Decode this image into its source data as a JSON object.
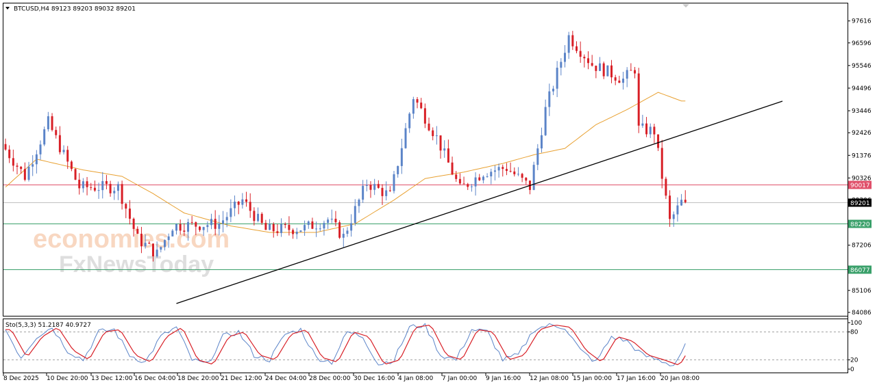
{
  "chart_data": {
    "type": "candlestick",
    "symbol_header": "BTCUSD,H4  89123 89203 89032 89201",
    "indicator_header": "Sto(5,3,3) 51.2187 40.9727",
    "price_axis": {
      "min": 84086,
      "max": 98080,
      "ticks": [
        "97616",
        "96596",
        "95546",
        "94496",
        "93446",
        "92426",
        "91376",
        "90326",
        "89306",
        "88256",
        "87206",
        "86156",
        "85106",
        "84086"
      ]
    },
    "stoch_axis": {
      "min": 0,
      "max": 100,
      "ticks": [
        "100",
        "80",
        "20",
        "0"
      ],
      "levels": [
        80,
        20
      ]
    },
    "time_labels": [
      "8 Dec 2025",
      "10 Dec 20:00",
      "13 Dec 12:00",
      "16 Dec 04:00",
      "18 Dec 20:00",
      "21 Dec 12:00",
      "24 Dec 04:00",
      "28 Dec 00:00",
      "30 Dec 16:00",
      "4 Jan 08:00",
      "7 Jan 00:00",
      "9 Jan 16:00",
      "12 Jan 08:00",
      "15 Jan 00:00",
      "17 Jan 16:00",
      "20 Jan 08:00"
    ],
    "horizontal_lines": [
      {
        "price": 90017,
        "label": "90017",
        "color": "#e0506a"
      },
      {
        "price": 89201,
        "label": "89201",
        "color": "#c0c0c0"
      },
      {
        "price": 88220,
        "label": "88220",
        "color": "#3aa06a"
      },
      {
        "price": 86077,
        "label": "86077",
        "color": "#3aa06a"
      }
    ],
    "trendline": {
      "from": {
        "bar": 44,
        "price": 84500
      },
      "to": {
        "bar": 200,
        "price": 93890
      }
    },
    "price_path": [
      [
        0,
        91900
      ],
      [
        6,
        90400
      ],
      [
        12,
        92900
      ],
      [
        20,
        89900
      ],
      [
        30,
        89900
      ],
      [
        35,
        87500
      ],
      [
        40,
        86800
      ],
      [
        44,
        88100
      ],
      [
        56,
        88200
      ],
      [
        62,
        89300
      ],
      [
        68,
        87900
      ],
      [
        78,
        88000
      ],
      [
        84,
        88400
      ],
      [
        88,
        87600
      ],
      [
        94,
        90100
      ],
      [
        100,
        89500
      ],
      [
        106,
        94100
      ],
      [
        112,
        92200
      ],
      [
        118,
        89800
      ],
      [
        124,
        90600
      ],
      [
        130,
        90800
      ],
      [
        136,
        89900
      ],
      [
        140,
        93500
      ],
      [
        146,
        96900
      ],
      [
        152,
        95600
      ],
      [
        160,
        94900
      ],
      [
        163,
        95400
      ],
      [
        164,
        92600
      ],
      [
        168,
        92500
      ],
      [
        172,
        88300
      ],
      [
        175,
        89201
      ]
    ],
    "ma_path": [
      [
        0,
        89900
      ],
      [
        8,
        91200
      ],
      [
        20,
        90700
      ],
      [
        30,
        90400
      ],
      [
        38,
        89600
      ],
      [
        46,
        88700
      ],
      [
        58,
        88100
      ],
      [
        68,
        87800
      ],
      [
        80,
        87800
      ],
      [
        90,
        88200
      ],
      [
        100,
        89300
      ],
      [
        108,
        90300
      ],
      [
        118,
        90600
      ],
      [
        128,
        91000
      ],
      [
        136,
        91400
      ],
      [
        144,
        91700
      ],
      [
        152,
        92800
      ],
      [
        160,
        93500
      ],
      [
        168,
        94300
      ],
      [
        174,
        93900
      ]
    ],
    "total_bars": 205,
    "candle_colors": {
      "up": "#5b84c8",
      "down": "#d81f26"
    },
    "ma_color": "#e8a030",
    "stoch_colors": {
      "main": "#5b84c8",
      "signal": "#d81f26"
    },
    "stoch_path": [
      [
        0,
        85
      ],
      [
        4,
        25
      ],
      [
        8,
        70
      ],
      [
        12,
        90
      ],
      [
        16,
        40
      ],
      [
        20,
        20
      ],
      [
        24,
        80
      ],
      [
        28,
        85
      ],
      [
        32,
        30
      ],
      [
        36,
        15
      ],
      [
        40,
        70
      ],
      [
        44,
        90
      ],
      [
        48,
        20
      ],
      [
        52,
        10
      ],
      [
        56,
        70
      ],
      [
        60,
        80
      ],
      [
        64,
        30
      ],
      [
        68,
        20
      ],
      [
        72,
        75
      ],
      [
        76,
        85
      ],
      [
        80,
        25
      ],
      [
        84,
        15
      ],
      [
        88,
        80
      ],
      [
        92,
        70
      ],
      [
        96,
        10
      ],
      [
        100,
        20
      ],
      [
        104,
        90
      ],
      [
        108,
        95
      ],
      [
        112,
        30
      ],
      [
        116,
        20
      ],
      [
        120,
        85
      ],
      [
        124,
        80
      ],
      [
        128,
        20
      ],
      [
        132,
        30
      ],
      [
        136,
        85
      ],
      [
        140,
        95
      ],
      [
        144,
        90
      ],
      [
        148,
        40
      ],
      [
        152,
        15
      ],
      [
        156,
        70
      ],
      [
        160,
        60
      ],
      [
        164,
        30
      ],
      [
        168,
        20
      ],
      [
        172,
        8
      ],
      [
        175,
        50
      ]
    ]
  },
  "watermark": {
    "line1": "economies.com",
    "line2": "FxNewsToday"
  }
}
